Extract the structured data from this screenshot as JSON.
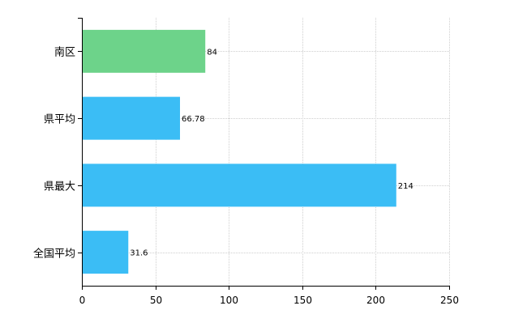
{
  "chart_data": {
    "type": "bar",
    "orientation": "horizontal",
    "categories": [
      "南区",
      "県平均",
      "県最大",
      "全国平均"
    ],
    "values": [
      84,
      66.78,
      214,
      31.6
    ],
    "value_labels": [
      "84",
      "66.78",
      "214",
      "31.6"
    ],
    "bar_colors": [
      "#6dd38a",
      "#3bbdf5",
      "#3bbdf5",
      "#3bbdf5"
    ],
    "xlim": [
      0,
      250
    ],
    "xticks": [
      0,
      50,
      100,
      150,
      200,
      250
    ],
    "x_tick_labels": [
      "0",
      "50",
      "100",
      "150",
      "200",
      "250"
    ],
    "grid": true,
    "legend": "none"
  }
}
